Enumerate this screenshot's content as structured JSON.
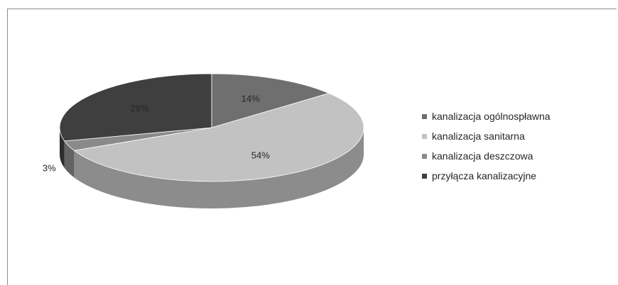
{
  "chart_data": {
    "type": "pie",
    "title": "",
    "categories": [
      "kanalizacja ogólnospławna",
      "kanalizacja sanitarna",
      "kanalizacja deszczowa",
      "przyłącza kanalizacyjne"
    ],
    "values": [
      14,
      54,
      3,
      29
    ],
    "labels": [
      "14%",
      "54%",
      "3%",
      "29%"
    ],
    "colors": [
      "#6f6f6f",
      "#c2c2c2",
      "#8a8a8a",
      "#3f3f3f"
    ],
    "style": "3d",
    "legend_position": "right"
  }
}
